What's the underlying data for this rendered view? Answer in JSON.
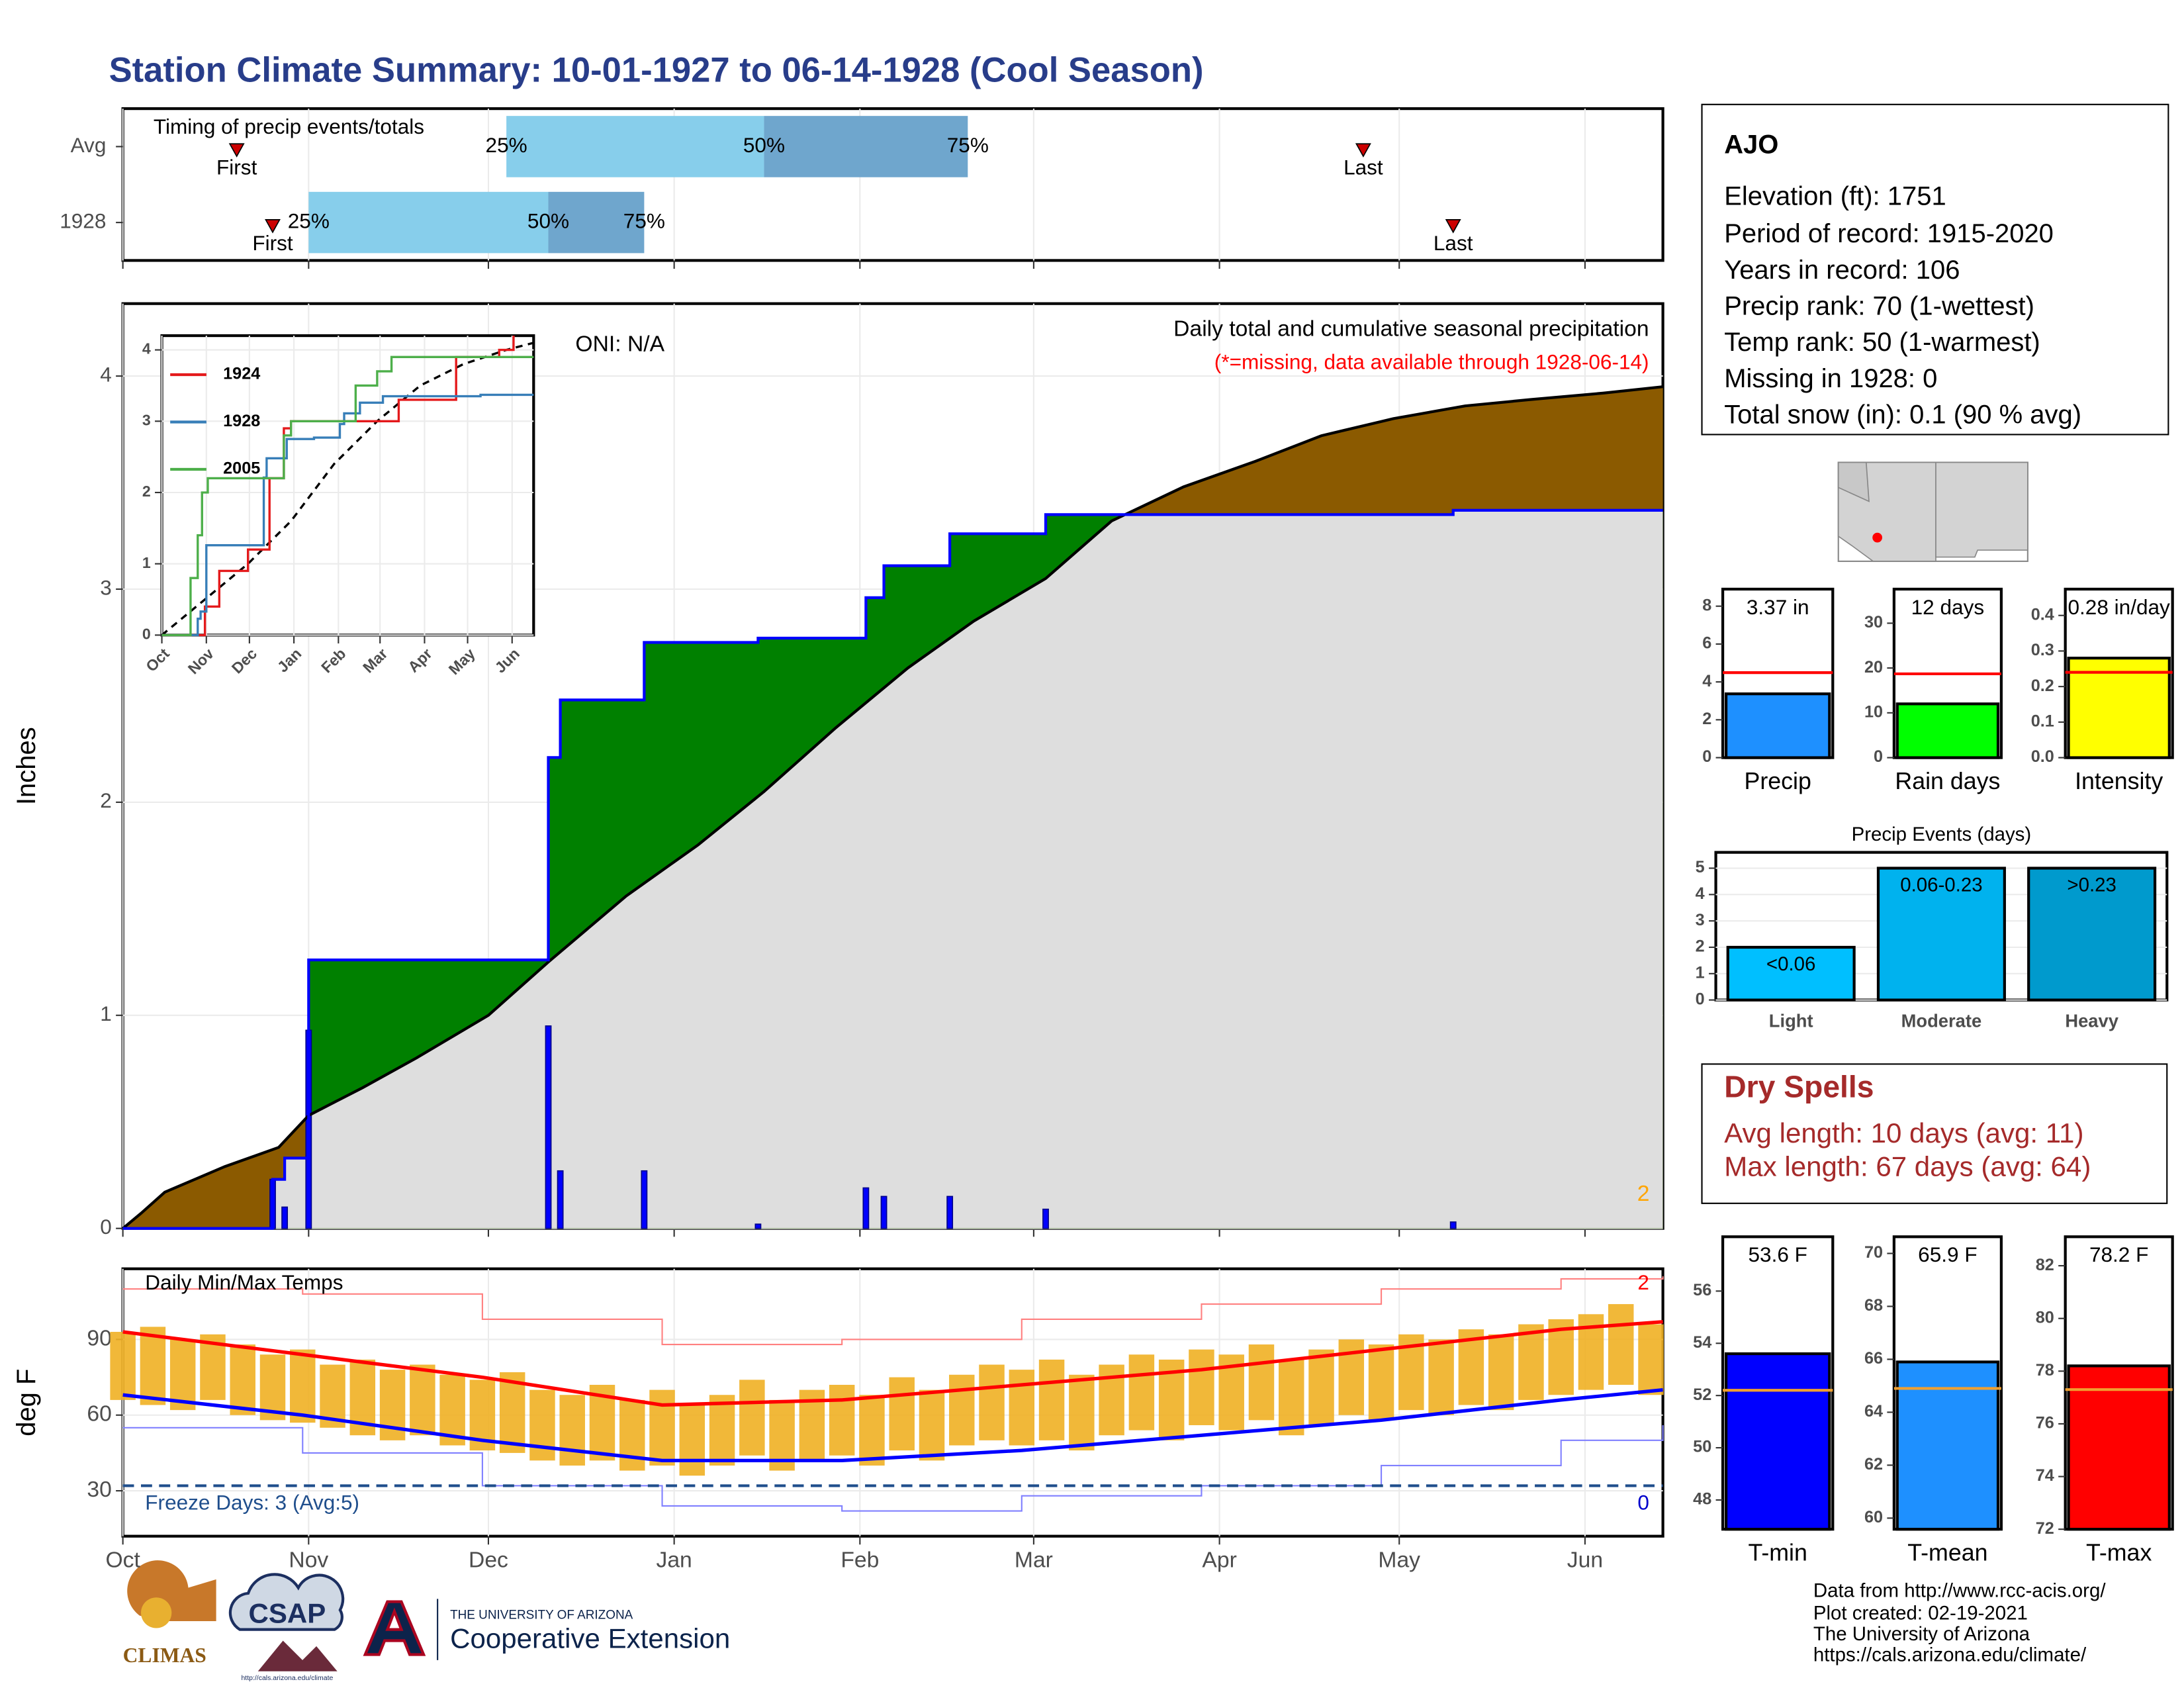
{
  "title": "Station Climate Summary: 10-01-1927 to 06-14-1928 (Cool Season)",
  "station": {
    "name": "AJO",
    "lines": [
      "Elevation (ft): 1751",
      "Period of record: 1915-2020",
      "Years in record: 106",
      "Precip rank: 70 (1-wettest)",
      "Temp rank: 50 (1-warmest)",
      "Missing in 1928: 0",
      "Total snow (in): 0.1 (90 % avg)"
    ]
  },
  "dry_spells": {
    "title": "Dry Spells",
    "lines": [
      "Avg length: 10 days (avg: 11)",
      "Max length: 67 days (avg: 64)"
    ]
  },
  "footer": [
    "Data from http://www.rcc-acis.org/",
    "Plot created: 02-19-2021",
    "The University of Arizona",
    "https://cals.arizona.edu/climate/"
  ],
  "logos": {
    "climas": "CLIMAS",
    "csap": "CSAP",
    "csap_url": "http://cals.arizona.edu/climate",
    "ua": "THE UNIVERSITY OF ARIZONA",
    "extension": "Cooperative Extension"
  },
  "chart_data": [
    {
      "type": "timeline",
      "title": "Timing of precip events/totals",
      "labels": [
        "First",
        "25%",
        "50%",
        "75%",
        "Last"
      ],
      "series": [
        {
          "name": "Avg",
          "values": [
            19,
            64,
            107,
            141,
            207
          ]
        },
        {
          "name": "1928",
          "values": [
            25,
            31,
            71,
            87,
            222
          ]
        }
      ],
      "colors": [
        "#87ceeb",
        "#6fa6cd"
      ],
      "marker_color": "#cc0000",
      "xlim": [
        0,
        257
      ],
      "xticks": [
        0,
        31,
        61,
        92,
        123,
        152,
        183,
        213,
        244
      ],
      "grid": true
    },
    {
      "type": "cumulative",
      "title": "Daily total and cumulative seasonal precipitation",
      "subtitle": "(*=missing, data available through 1928-06-14)",
      "annotation": "ONI: N/A",
      "corner_label": "2",
      "ylabel": "Inches",
      "cumulative": {
        "color": "#0000ff",
        "x": [
          0,
          25,
          27,
          31,
          71,
          73,
          87,
          106,
          124,
          127,
          138,
          154,
          222,
          257
        ],
        "values": [
          0,
          0.23,
          0.33,
          1.26,
          2.21,
          2.48,
          2.75,
          2.77,
          2.96,
          3.11,
          3.26,
          3.35,
          3.37,
          3.37
        ]
      },
      "average": {
        "color": "#000000",
        "x": [
          0,
          3,
          7,
          17,
          26,
          31,
          40,
          49,
          61,
          71,
          84,
          96,
          107,
          119,
          131,
          142,
          154,
          165,
          177,
          189,
          200,
          212,
          224,
          235,
          247,
          257
        ],
        "values": [
          0,
          0.07,
          0.17,
          0.29,
          0.38,
          0.53,
          0.66,
          0.8,
          1.0,
          1.25,
          1.56,
          1.8,
          2.05,
          2.35,
          2.63,
          2.85,
          3.05,
          3.32,
          3.48,
          3.6,
          3.72,
          3.8,
          3.86,
          3.89,
          3.92,
          3.95
        ]
      },
      "daily": {
        "color": "#0000ff",
        "x": [
          25,
          27,
          31,
          71,
          73,
          87,
          106,
          124,
          127,
          138,
          154,
          222
        ],
        "values": [
          0.23,
          0.1,
          0.93,
          0.95,
          0.27,
          0.27,
          0.02,
          0.19,
          0.15,
          0.15,
          0.09,
          0.03
        ]
      },
      "fill_colors": {
        "above": "#008000",
        "below": "#8b5a00",
        "base": "#dedede"
      },
      "xlim": [
        0,
        257
      ],
      "ylim": [
        0,
        4.34
      ],
      "xticks": [
        0,
        31,
        61,
        92,
        123,
        152,
        183,
        213,
        244
      ],
      "yticks": [
        0,
        1,
        2,
        3,
        4
      ],
      "grid": true
    },
    {
      "type": "step",
      "series": [
        {
          "name": "1924",
          "color": "#e41a1c",
          "x": [
            0,
            28,
            30,
            40,
            60,
            75,
            85,
            90,
            160,
            165,
            200,
            205,
            230,
            235,
            245
          ],
          "values": [
            0,
            0,
            0.4,
            0.9,
            1.2,
            2.2,
            2.9,
            3.0,
            3.0,
            3.3,
            3.3,
            3.9,
            3.9,
            4.0,
            4.2
          ]
        },
        {
          "name": "1928",
          "color": "#377eb8",
          "x": [
            0,
            25,
            27,
            31,
            71,
            73,
            87,
            106,
            124,
            127,
            138,
            154,
            222,
            259
          ],
          "values": [
            0,
            0.23,
            0.33,
            1.26,
            2.21,
            2.48,
            2.75,
            2.77,
            2.96,
            3.11,
            3.26,
            3.35,
            3.37,
            3.37
          ]
        },
        {
          "name": "2005",
          "color": "#4daf4a",
          "x": [
            0,
            20,
            25,
            28,
            32,
            75,
            85,
            90,
            130,
            135,
            150,
            160,
            259
          ],
          "values": [
            0,
            0.8,
            1.4,
            2.0,
            2.2,
            2.2,
            2.8,
            3.0,
            3.0,
            3.5,
            3.7,
            3.9,
            3.9
          ]
        }
      ],
      "average": {
        "color": "#000000",
        "x": [
          0,
          30,
          60,
          90,
          120,
          150,
          180,
          210,
          240,
          259
        ],
        "values": [
          0,
          0.5,
          1.0,
          1.6,
          2.4,
          3.0,
          3.5,
          3.8,
          4.0,
          4.1
        ]
      },
      "xlim": [
        0,
        259
      ],
      "ylim": [
        0,
        4.2
      ],
      "yticks": [
        0,
        1,
        2,
        3,
        4
      ],
      "xticks": [
        {
          "value": 0,
          "label": "Oct"
        },
        {
          "value": 31,
          "label": "Nov"
        },
        {
          "value": 61,
          "label": "Dec"
        },
        {
          "value": 92,
          "label": "Jan"
        },
        {
          "value": 123,
          "label": "Feb"
        },
        {
          "value": 152,
          "label": "Mar"
        },
        {
          "value": 183,
          "label": "Apr"
        },
        {
          "value": 213,
          "label": "May"
        },
        {
          "value": 244,
          "label": "Jun"
        }
      ],
      "grid": true
    },
    {
      "type": "range",
      "title": "Daily Min/Max Temps",
      "ylabel": "deg F",
      "color": "#f0b023",
      "x": [
        0,
        5,
        10,
        15,
        20,
        25,
        30,
        35,
        40,
        45,
        50,
        55,
        60,
        65,
        70,
        75,
        80,
        85,
        90,
        95,
        100,
        105,
        110,
        115,
        120,
        125,
        130,
        135,
        140,
        145,
        150,
        155,
        160,
        165,
        170,
        175,
        180,
        185,
        190,
        195,
        200,
        205,
        210,
        215,
        220,
        225,
        230,
        235,
        240,
        245,
        250,
        255
      ],
      "max": [
        93,
        95,
        90,
        92,
        88,
        84,
        86,
        80,
        82,
        78,
        80,
        76,
        74,
        77,
        70,
        68,
        72,
        66,
        70,
        64,
        68,
        74,
        66,
        70,
        72,
        68,
        75,
        70,
        76,
        80,
        78,
        82,
        76,
        80,
        84,
        82,
        86,
        84,
        88,
        82,
        86,
        90,
        88,
        92,
        90,
        94,
        92,
        96,
        98,
        100,
        104,
        96
      ],
      "min": [
        66,
        64,
        62,
        66,
        60,
        58,
        57,
        55,
        52,
        50,
        52,
        48,
        46,
        45,
        42,
        40,
        42,
        38,
        40,
        36,
        40,
        44,
        38,
        42,
        44,
        40,
        46,
        42,
        48,
        50,
        48,
        50,
        46,
        52,
        54,
        50,
        56,
        54,
        58,
        52,
        56,
        60,
        58,
        62,
        60,
        64,
        62,
        66,
        68,
        70,
        72,
        68
      ],
      "lines": [
        {
          "color": "#ff8080",
          "width": 1,
          "x": [
            0,
            30,
            60,
            90,
            120,
            150,
            180,
            210,
            240,
            257
          ],
          "values": [
            110,
            108,
            98,
            88,
            90,
            98,
            104,
            110,
            114,
            115
          ]
        },
        {
          "color": "#8080ff",
          "width": 1,
          "x": [
            0,
            30,
            60,
            90,
            120,
            150,
            180,
            210,
            240,
            257
          ],
          "values": [
            55,
            45,
            32,
            24,
            22,
            28,
            32,
            40,
            50,
            56
          ]
        },
        {
          "color": "#ff0000",
          "width": 2.5,
          "x": [
            0,
            30,
            60,
            90,
            120,
            150,
            180,
            210,
            240,
            257
          ],
          "values": [
            93,
            84,
            75,
            64,
            66,
            72,
            78,
            86,
            94,
            97
          ]
        },
        {
          "color": "#0000ff",
          "width": 2.5,
          "x": [
            0,
            30,
            60,
            90,
            120,
            150,
            180,
            210,
            240,
            257
          ],
          "values": [
            68,
            60,
            50,
            42,
            42,
            46,
            52,
            58,
            66,
            70
          ]
        }
      ],
      "freeze": {
        "value": 32,
        "label": "Freeze Days: 3 (Avg:5)",
        "color": "#1f4e8c"
      },
      "top_label": {
        "label": "2",
        "color": "#ff0000"
      },
      "bottom_label": {
        "label": "0",
        "color": "#0000cc"
      },
      "xlim": [
        0,
        257
      ],
      "ylim": [
        12,
        118
      ],
      "yticks": [
        30,
        60,
        90
      ],
      "xticks": [
        {
          "value": 0,
          "label": "Oct"
        },
        {
          "value": 31,
          "label": "Nov"
        },
        {
          "value": 61,
          "label": "Dec"
        },
        {
          "value": 92,
          "label": "Jan"
        },
        {
          "value": 123,
          "label": "Feb"
        },
        {
          "value": 152,
          "label": "Mar"
        },
        {
          "value": 183,
          "label": "Apr"
        },
        {
          "value": 213,
          "label": "May"
        },
        {
          "value": 244,
          "label": "Jun"
        }
      ],
      "grid": true
    },
    {
      "type": "bar",
      "categories": [
        "Precip"
      ],
      "values": [
        3.37
      ],
      "value_labels": [
        "3.37 in"
      ],
      "color": "#1e90ff",
      "average": 4.49,
      "average_color": "#ff0000",
      "label_position": "top",
      "ylim": [
        0,
        8.9
      ],
      "yticks": [
        0,
        2,
        4,
        6,
        8
      ]
    },
    {
      "type": "bar",
      "categories": [
        "Rain days"
      ],
      "values": [
        12
      ],
      "value_labels": [
        "12 days"
      ],
      "color": "#00ff00",
      "average": 18.7,
      "average_color": "#ff0000",
      "label_position": "top",
      "ylim": [
        0,
        37.6
      ],
      "yticks": [
        0,
        10,
        20,
        30
      ]
    },
    {
      "type": "bar",
      "categories": [
        "Intensity"
      ],
      "values": [
        0.28
      ],
      "value_labels": [
        "0.28 in/day"
      ],
      "color": "#ffff00",
      "average": 0.24,
      "average_color": "#ff0000",
      "label_position": "top",
      "ylim": [
        0,
        0.474
      ],
      "yticks": [
        {
          "value": 0,
          "label": "0.0"
        },
        0.1,
        0.2,
        0.3,
        0.4
      ]
    },
    {
      "type": "bar",
      "title": "Precip Events (days)",
      "categories": [
        "Light",
        "Moderate",
        "Heavy"
      ],
      "values": [
        2,
        5,
        5
      ],
      "value_labels": [
        "<0.06",
        "0.06-0.23",
        ">0.23"
      ],
      "colors": [
        "#00bfff",
        "#00b2ee",
        "#009acd"
      ],
      "label_position": "inside",
      "ylim": [
        0,
        5.6
      ],
      "yticks": [
        0,
        1,
        2,
        3,
        4,
        5
      ],
      "grid": true
    },
    {
      "type": "bar",
      "categories": [
        "T-min"
      ],
      "values": [
        53.6
      ],
      "value_labels": [
        "53.6 F"
      ],
      "color": "#0000ff",
      "average": 52.2,
      "average_color": "#f0a030",
      "label_position": "top",
      "ylim": [
        46.88,
        58.08
      ],
      "yticks": [
        48,
        50,
        52,
        54,
        56
      ]
    },
    {
      "type": "bar",
      "categories": [
        "T-mean"
      ],
      "values": [
        65.9
      ],
      "value_labels": [
        "65.9 F"
      ],
      "color": "#1e90ff",
      "average": 64.9,
      "average_color": "#f0a030",
      "label_position": "top",
      "ylim": [
        59.58,
        70.63
      ],
      "yticks": [
        60,
        62,
        64,
        66,
        68,
        70
      ]
    },
    {
      "type": "bar",
      "categories": [
        "T-max"
      ],
      "values": [
        78.2
      ],
      "value_labels": [
        "78.2 F"
      ],
      "color": "#ff0000",
      "average": 77.3,
      "average_color": "#f0a030",
      "label_position": "top",
      "ylim": [
        72,
        83.1
      ],
      "yticks": [
        72,
        74,
        76,
        78,
        80,
        82
      ]
    }
  ]
}
